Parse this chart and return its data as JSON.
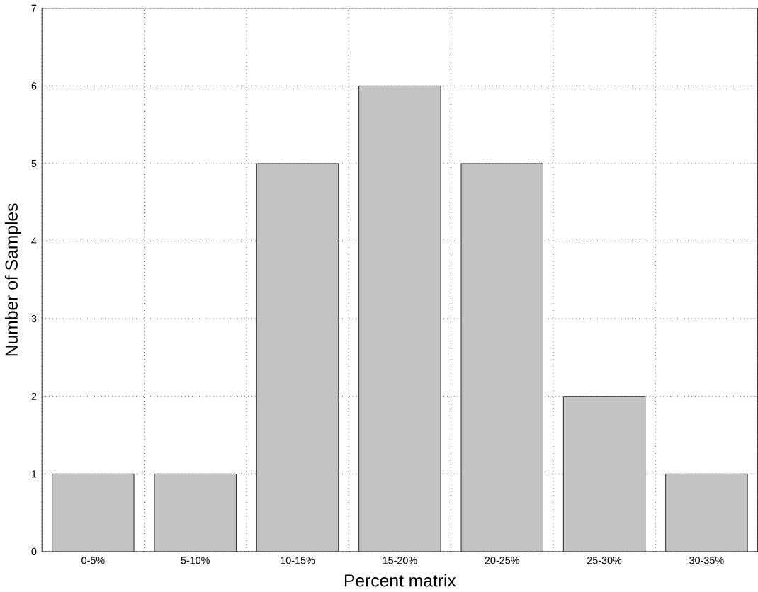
{
  "chart_data": {
    "type": "bar",
    "xlabel": "Percent matrix",
    "ylabel": "Number of Samples",
    "categories": [
      "0-5%",
      "5-10%",
      "10-15%",
      "15-20%",
      "20-25%",
      "25-30%",
      "30-35%"
    ],
    "values": [
      1,
      1,
      5,
      6,
      5,
      2,
      1
    ],
    "color": "#c4c4c4",
    "ylim": [
      0,
      7
    ],
    "yticks": [
      0,
      1,
      2,
      3,
      4,
      5,
      6,
      7
    ],
    "grid": true
  }
}
